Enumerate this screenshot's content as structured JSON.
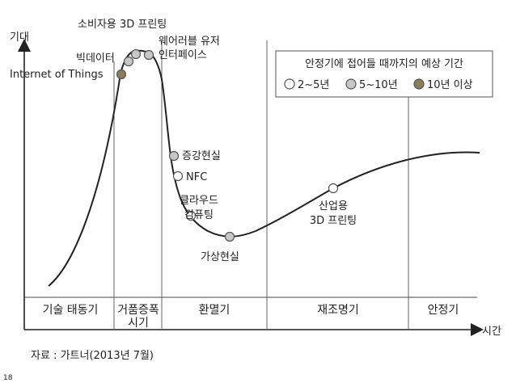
{
  "axes": {
    "y_label": "기대",
    "x_label": "시간"
  },
  "phases": [
    {
      "label": "기술 태동기"
    },
    {
      "label": "거품증폭",
      "label2": "시기"
    },
    {
      "label": "환멸기"
    },
    {
      "label": "재조명기"
    },
    {
      "label": "안정기"
    }
  ],
  "legend": {
    "title": "안정기에 접어들 때까지의 예상 기간",
    "items": [
      {
        "label": "2~5년",
        "color": "#ffffff"
      },
      {
        "label": "5~10년",
        "color": "#c8c8c8"
      },
      {
        "label": "10년 이상",
        "color": "#8b7d5a"
      }
    ]
  },
  "technologies": [
    {
      "label": "소비자용 3D 프린팅",
      "category": "5~10년"
    },
    {
      "label": "빅데이터",
      "category": "5~10년"
    },
    {
      "label": "Internet of Things",
      "category": "10년 이상"
    },
    {
      "label": "웨어러블 유저",
      "label2": "인터페이스",
      "category": "5~10년"
    },
    {
      "label": "증강현실",
      "category": "5~10년"
    },
    {
      "label": "NFC",
      "category": "2~5년"
    },
    {
      "label": "클라우드",
      "label2": "컴퓨팅",
      "category": "2~5년"
    },
    {
      "label": "가상현실",
      "category": "5~10년"
    },
    {
      "label": "산업용",
      "label2": "3D 프린팅",
      "category": "2~5년"
    }
  ],
  "source": "자료 : 가트너(2013년 7월)",
  "page_number": "18"
}
